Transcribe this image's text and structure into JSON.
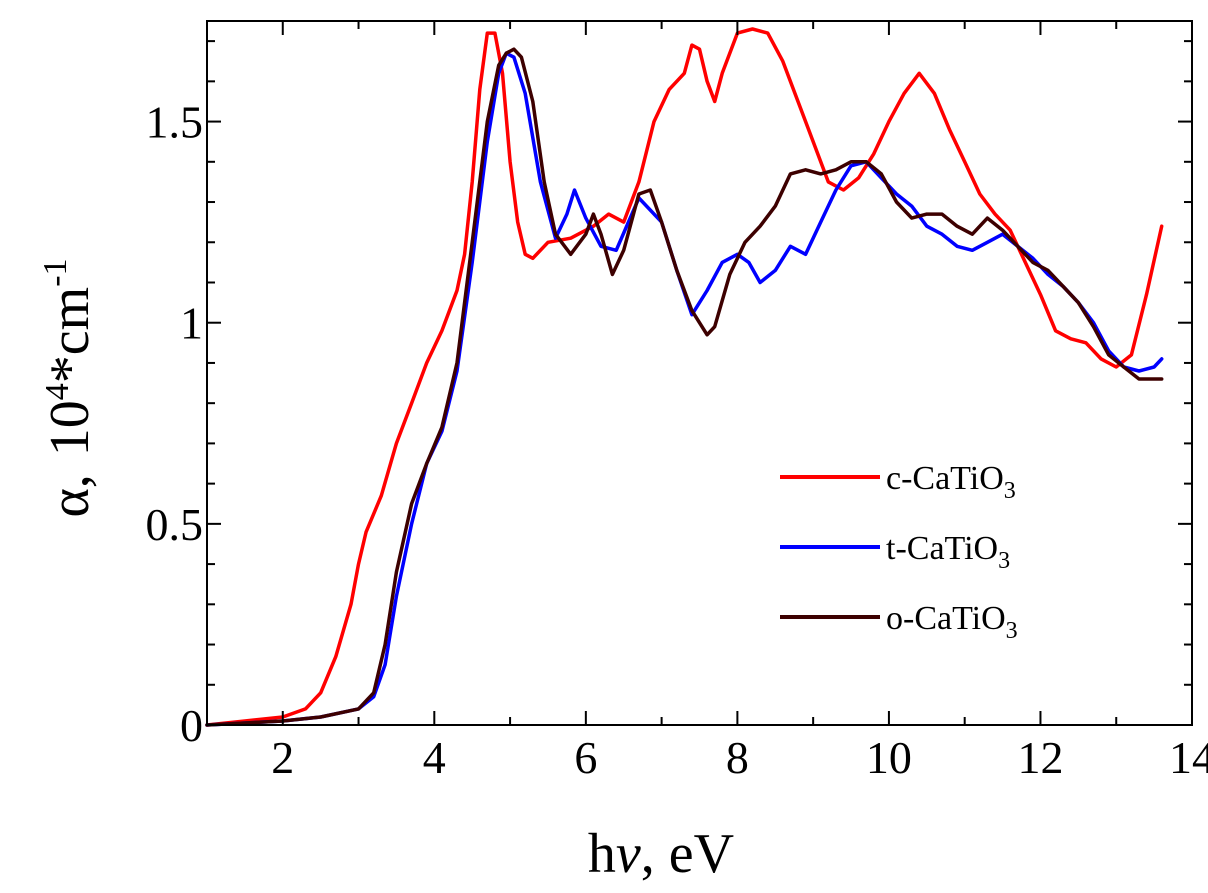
{
  "chart_data": {
    "type": "line",
    "title": "",
    "xlabel": "hν, eV",
    "xlabel_parts": {
      "main": "h",
      "var": "ν",
      "rest": ", eV"
    },
    "ylabel": "α, 10⁴*cm⁻¹",
    "ylabel_parts": {
      "alpha": "α",
      "comma": ",",
      "base": "10",
      "exp": "4",
      "mid": "*cm",
      "exp2": "-1"
    },
    "xlim": [
      1,
      14
    ],
    "ylim": [
      0,
      1.75
    ],
    "xticks": [
      2,
      4,
      6,
      8,
      10,
      12,
      14
    ],
    "xtick_labels": [
      "2",
      "4",
      "6",
      "8",
      "10",
      "12",
      "14"
    ],
    "yticks": [
      0,
      0.5,
      1,
      1.5
    ],
    "ytick_labels": [
      "0",
      "0.5",
      "1",
      "1.5"
    ],
    "grid": false,
    "legend_position": "right",
    "series": [
      {
        "name": "c-CaTiO3",
        "label": {
          "main": "c-CaTiO",
          "sub": "3"
        },
        "color": "#ff0000",
        "points": [
          [
            1.0,
            0.0
          ],
          [
            1.5,
            0.01
          ],
          [
            2.0,
            0.02
          ],
          [
            2.3,
            0.04
          ],
          [
            2.5,
            0.08
          ],
          [
            2.7,
            0.17
          ],
          [
            2.9,
            0.3
          ],
          [
            3.0,
            0.4
          ],
          [
            3.1,
            0.48
          ],
          [
            3.3,
            0.57
          ],
          [
            3.5,
            0.7
          ],
          [
            3.7,
            0.8
          ],
          [
            3.9,
            0.9
          ],
          [
            4.1,
            0.98
          ],
          [
            4.3,
            1.08
          ],
          [
            4.4,
            1.17
          ],
          [
            4.5,
            1.35
          ],
          [
            4.6,
            1.58
          ],
          [
            4.7,
            1.72
          ],
          [
            4.8,
            1.72
          ],
          [
            4.9,
            1.62
          ],
          [
            5.0,
            1.4
          ],
          [
            5.1,
            1.25
          ],
          [
            5.2,
            1.17
          ],
          [
            5.3,
            1.16
          ],
          [
            5.5,
            1.2
          ],
          [
            5.8,
            1.21
          ],
          [
            6.1,
            1.24
          ],
          [
            6.3,
            1.27
          ],
          [
            6.5,
            1.25
          ],
          [
            6.7,
            1.35
          ],
          [
            6.9,
            1.5
          ],
          [
            7.1,
            1.58
          ],
          [
            7.3,
            1.62
          ],
          [
            7.4,
            1.69
          ],
          [
            7.5,
            1.68
          ],
          [
            7.6,
            1.6
          ],
          [
            7.7,
            1.55
          ],
          [
            7.8,
            1.62
          ],
          [
            8.0,
            1.72
          ],
          [
            8.2,
            1.73
          ],
          [
            8.4,
            1.72
          ],
          [
            8.6,
            1.65
          ],
          [
            8.8,
            1.55
          ],
          [
            9.0,
            1.45
          ],
          [
            9.2,
            1.35
          ],
          [
            9.4,
            1.33
          ],
          [
            9.6,
            1.36
          ],
          [
            9.8,
            1.42
          ],
          [
            10.0,
            1.5
          ],
          [
            10.2,
            1.57
          ],
          [
            10.4,
            1.62
          ],
          [
            10.6,
            1.57
          ],
          [
            10.8,
            1.48
          ],
          [
            11.0,
            1.4
          ],
          [
            11.2,
            1.32
          ],
          [
            11.4,
            1.27
          ],
          [
            11.6,
            1.23
          ],
          [
            11.8,
            1.15
          ],
          [
            12.0,
            1.07
          ],
          [
            12.2,
            0.98
          ],
          [
            12.4,
            0.96
          ],
          [
            12.6,
            0.95
          ],
          [
            12.8,
            0.91
          ],
          [
            13.0,
            0.89
          ],
          [
            13.2,
            0.92
          ],
          [
            13.4,
            1.07
          ],
          [
            13.6,
            1.24
          ]
        ]
      },
      {
        "name": "t-CaTiO3",
        "label": {
          "main": "t-CaTiO",
          "sub": "3"
        },
        "color": "#0000ff",
        "points": [
          [
            1.0,
            0.0
          ],
          [
            1.5,
            0.005
          ],
          [
            2.0,
            0.01
          ],
          [
            2.5,
            0.02
          ],
          [
            3.0,
            0.04
          ],
          [
            3.2,
            0.07
          ],
          [
            3.35,
            0.15
          ],
          [
            3.5,
            0.32
          ],
          [
            3.7,
            0.5
          ],
          [
            3.9,
            0.65
          ],
          [
            4.1,
            0.73
          ],
          [
            4.3,
            0.88
          ],
          [
            4.5,
            1.15
          ],
          [
            4.7,
            1.45
          ],
          [
            4.85,
            1.62
          ],
          [
            4.95,
            1.67
          ],
          [
            5.05,
            1.66
          ],
          [
            5.2,
            1.57
          ],
          [
            5.4,
            1.35
          ],
          [
            5.6,
            1.21
          ],
          [
            5.75,
            1.27
          ],
          [
            5.85,
            1.33
          ],
          [
            6.0,
            1.26
          ],
          [
            6.2,
            1.19
          ],
          [
            6.4,
            1.18
          ],
          [
            6.7,
            1.31
          ],
          [
            7.0,
            1.25
          ],
          [
            7.2,
            1.13
          ],
          [
            7.4,
            1.02
          ],
          [
            7.6,
            1.08
          ],
          [
            7.8,
            1.15
          ],
          [
            8.0,
            1.17
          ],
          [
            8.15,
            1.15
          ],
          [
            8.3,
            1.1
          ],
          [
            8.5,
            1.13
          ],
          [
            8.7,
            1.19
          ],
          [
            8.9,
            1.17
          ],
          [
            9.1,
            1.25
          ],
          [
            9.3,
            1.33
          ],
          [
            9.5,
            1.39
          ],
          [
            9.7,
            1.4
          ],
          [
            9.9,
            1.36
          ],
          [
            10.1,
            1.32
          ],
          [
            10.3,
            1.29
          ],
          [
            10.5,
            1.24
          ],
          [
            10.7,
            1.22
          ],
          [
            10.9,
            1.19
          ],
          [
            11.1,
            1.18
          ],
          [
            11.3,
            1.2
          ],
          [
            11.5,
            1.22
          ],
          [
            11.7,
            1.19
          ],
          [
            11.9,
            1.16
          ],
          [
            12.1,
            1.12
          ],
          [
            12.3,
            1.09
          ],
          [
            12.5,
            1.05
          ],
          [
            12.7,
            1.0
          ],
          [
            12.9,
            0.93
          ],
          [
            13.1,
            0.89
          ],
          [
            13.3,
            0.88
          ],
          [
            13.5,
            0.89
          ],
          [
            13.6,
            0.91
          ]
        ]
      },
      {
        "name": "o-CaTiO3",
        "label": {
          "main": "o-CaTiO",
          "sub": "3"
        },
        "color": "#3d0000",
        "points": [
          [
            1.0,
            0.0
          ],
          [
            1.5,
            0.005
          ],
          [
            2.0,
            0.01
          ],
          [
            2.5,
            0.02
          ],
          [
            3.0,
            0.04
          ],
          [
            3.2,
            0.08
          ],
          [
            3.35,
            0.2
          ],
          [
            3.5,
            0.38
          ],
          [
            3.7,
            0.55
          ],
          [
            3.9,
            0.65
          ],
          [
            4.1,
            0.74
          ],
          [
            4.3,
            0.9
          ],
          [
            4.5,
            1.2
          ],
          [
            4.7,
            1.5
          ],
          [
            4.85,
            1.64
          ],
          [
            4.95,
            1.67
          ],
          [
            5.05,
            1.68
          ],
          [
            5.15,
            1.66
          ],
          [
            5.3,
            1.55
          ],
          [
            5.45,
            1.35
          ],
          [
            5.6,
            1.22
          ],
          [
            5.8,
            1.17
          ],
          [
            6.0,
            1.22
          ],
          [
            6.1,
            1.27
          ],
          [
            6.2,
            1.22
          ],
          [
            6.35,
            1.12
          ],
          [
            6.5,
            1.18
          ],
          [
            6.7,
            1.32
          ],
          [
            6.85,
            1.33
          ],
          [
            7.0,
            1.25
          ],
          [
            7.2,
            1.13
          ],
          [
            7.4,
            1.03
          ],
          [
            7.6,
            0.97
          ],
          [
            7.7,
            0.99
          ],
          [
            7.9,
            1.12
          ],
          [
            8.1,
            1.2
          ],
          [
            8.3,
            1.24
          ],
          [
            8.5,
            1.29
          ],
          [
            8.7,
            1.37
          ],
          [
            8.9,
            1.38
          ],
          [
            9.1,
            1.37
          ],
          [
            9.3,
            1.38
          ],
          [
            9.5,
            1.4
          ],
          [
            9.7,
            1.4
          ],
          [
            9.9,
            1.37
          ],
          [
            10.1,
            1.3
          ],
          [
            10.3,
            1.26
          ],
          [
            10.5,
            1.27
          ],
          [
            10.7,
            1.27
          ],
          [
            10.9,
            1.24
          ],
          [
            11.1,
            1.22
          ],
          [
            11.3,
            1.26
          ],
          [
            11.5,
            1.23
          ],
          [
            11.7,
            1.19
          ],
          [
            11.9,
            1.15
          ],
          [
            12.1,
            1.13
          ],
          [
            12.3,
            1.09
          ],
          [
            12.5,
            1.05
          ],
          [
            12.7,
            0.99
          ],
          [
            12.9,
            0.92
          ],
          [
            13.1,
            0.89
          ],
          [
            13.3,
            0.86
          ],
          [
            13.6,
            0.86
          ]
        ]
      }
    ]
  }
}
